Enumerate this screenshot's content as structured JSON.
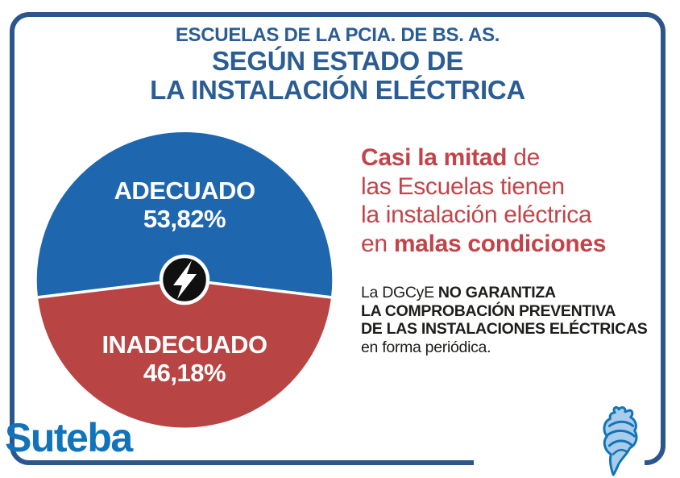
{
  "header": {
    "kicker": "ESCUELAS DE LA PCIA. DE BS. AS.",
    "title_line1": "SEGÚN ESTADO DE",
    "title_line2": "LA INSTALACIÓN ELÉCTRICA",
    "color": "#2b5d94"
  },
  "chart_data": {
    "type": "pie",
    "title": "Escuelas de la Pcia. de Bs. As. según estado de la instalación eléctrica",
    "slices": [
      {
        "label": "ADECUADO",
        "value": 53.82,
        "display": "53,82%",
        "color": "#1e66ad"
      },
      {
        "label": "INADECUADO",
        "value": 46.18,
        "display": "46,18%",
        "color": "#b84444"
      }
    ],
    "label_color": "#ffffff",
    "divider_color": "#ffffff",
    "center_icon": "lightning-bolt",
    "layout": "blue slice centered at top, labels inside slices"
  },
  "callout": {
    "line1_bold": "Casi la mitad",
    "line1_rest": " de",
    "line2": "las Escuelas tienen",
    "line3": "la instalación eléctrica",
    "line4_pre": "en ",
    "line4_bold": "malas condiciones",
    "color": "#c2444a"
  },
  "note": {
    "line1_pre": "La DGCyE ",
    "line1_bold": "NO GARANTIZA",
    "line2": "LA COMPROBACIÓN PREVENTIVA",
    "line3": "DE LAS INSTALACIONES ELÉCTRICAS",
    "line4": "en forma periódica.",
    "color": "#1d1d1b"
  },
  "logo": {
    "name": "Suteba",
    "text_color": "#1173b9",
    "map_fill": "#a8cce9"
  },
  "frame": {
    "border_color": "#2b568c"
  }
}
